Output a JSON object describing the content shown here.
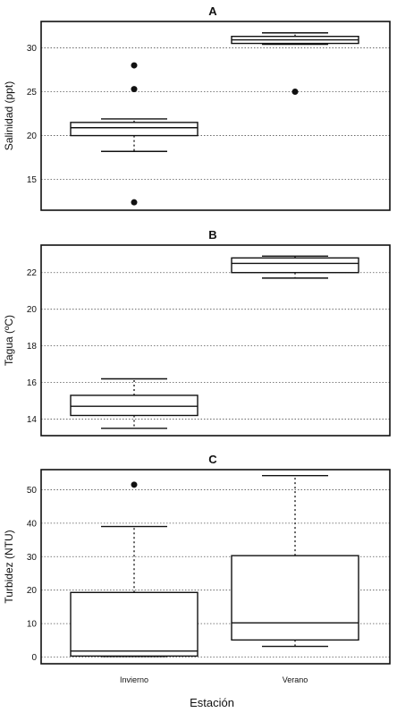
{
  "chart_data": [
    {
      "type": "box",
      "title": "A",
      "ylabel": "Salinidad (ppt)",
      "ylim": [
        11.5,
        33
      ],
      "yticks": [
        15,
        20,
        25,
        30
      ],
      "grid": true,
      "categories": [
        "Invierno",
        "Verano"
      ],
      "boxes": [
        {
          "min": 18.2,
          "q1": 20.0,
          "median": 20.9,
          "q3": 21.5,
          "max": 21.9,
          "outliers": [
            12.4,
            25.3,
            28.0
          ]
        },
        {
          "min": 30.4,
          "q1": 30.5,
          "median": 30.9,
          "q3": 31.3,
          "max": 31.7,
          "outliers": [
            25.0
          ]
        }
      ]
    },
    {
      "type": "box",
      "title": "B",
      "ylabel": "Tagua (ºC)",
      "ylim": [
        13.1,
        23.5
      ],
      "yticks": [
        14,
        16,
        18,
        20,
        22
      ],
      "grid": true,
      "categories": [
        "Invierno",
        "Verano"
      ],
      "boxes": [
        {
          "min": 13.5,
          "q1": 14.2,
          "median": 14.7,
          "q3": 15.3,
          "max": 16.2,
          "outliers": []
        },
        {
          "min": 21.7,
          "q1": 22.0,
          "median": 22.5,
          "q3": 22.8,
          "max": 22.9,
          "outliers": []
        }
      ]
    },
    {
      "type": "box",
      "title": "C",
      "ylabel": "Turbidez (NTU)",
      "ylim": [
        -2,
        56
      ],
      "yticks": [
        0,
        10,
        20,
        30,
        40,
        50
      ],
      "grid": true,
      "categories": [
        "Invierno",
        "Verano"
      ],
      "xlabel": "Estación",
      "boxes": [
        {
          "min": 0.2,
          "q1": 0.3,
          "median": 1.8,
          "q3": 19.3,
          "max": 39.0,
          "outliers": [
            51.5
          ]
        },
        {
          "min": 3.2,
          "q1": 5.1,
          "median": 10.2,
          "q3": 30.3,
          "max": 54.2,
          "outliers": []
        }
      ]
    }
  ]
}
